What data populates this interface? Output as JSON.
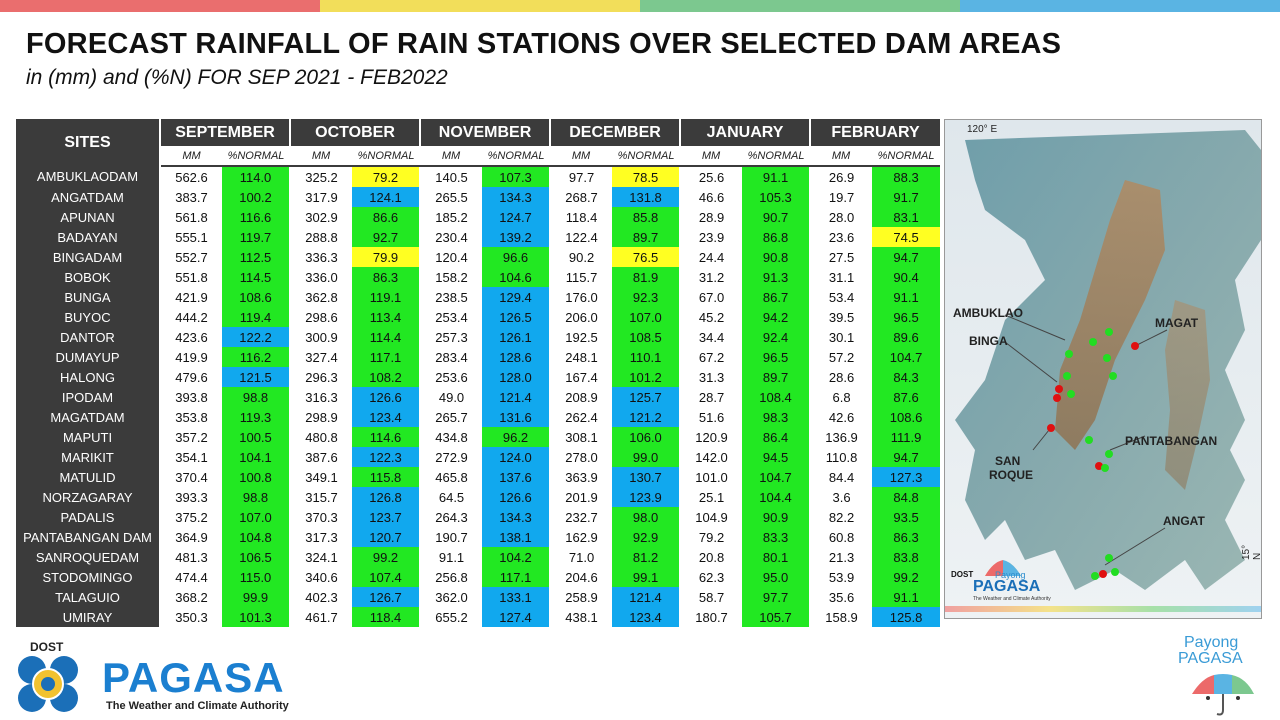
{
  "topbar_colors": [
    "#ea6e6e",
    "#f2de5a",
    "#7cc88f",
    "#5ab4e3"
  ],
  "title": "FORECAST RAINFALL OF RAIN STATIONS OVER SELECTED DAM AREAS",
  "subtitle": "in (mm) and (%N) FOR SEP 2021 - FEB2022",
  "table": {
    "site_header": "SITES",
    "months": [
      "SEPTEMBER",
      "OCTOBER",
      "NOVEMBER",
      "DECEMBER",
      "JANUARY",
      "FEBRUARY"
    ],
    "sub_mm": "MM",
    "sub_pct": "%NORMAL",
    "legend_colors": {
      "below_normal": "#ffff22",
      "near_normal": "#22e822",
      "above_normal": "#11a8ee"
    },
    "rows": [
      {
        "site": "AMBUKLAODAM",
        "vals": [
          [
            "562.6",
            "114.0",
            "g"
          ],
          [
            "325.2",
            "79.2",
            "y"
          ],
          [
            "140.5",
            "107.3",
            "g"
          ],
          [
            "97.7",
            "78.5",
            "y"
          ],
          [
            "25.6",
            "91.1",
            "g"
          ],
          [
            "26.9",
            "88.3",
            "g"
          ]
        ]
      },
      {
        "site": "ANGATDAM",
        "vals": [
          [
            "383.7",
            "100.2",
            "g"
          ],
          [
            "317.9",
            "124.1",
            "b"
          ],
          [
            "265.5",
            "134.3",
            "b"
          ],
          [
            "268.7",
            "131.8",
            "b"
          ],
          [
            "46.6",
            "105.3",
            "g"
          ],
          [
            "19.7",
            "91.7",
            "g"
          ]
        ]
      },
      {
        "site": "APUNAN",
        "vals": [
          [
            "561.8",
            "116.6",
            "g"
          ],
          [
            "302.9",
            "86.6",
            "g"
          ],
          [
            "185.2",
            "124.7",
            "b"
          ],
          [
            "118.4",
            "85.8",
            "g"
          ],
          [
            "28.9",
            "90.7",
            "g"
          ],
          [
            "28.0",
            "83.1",
            "g"
          ]
        ]
      },
      {
        "site": "BADAYAN",
        "vals": [
          [
            "555.1",
            "119.7",
            "g"
          ],
          [
            "288.8",
            "92.7",
            "g"
          ],
          [
            "230.4",
            "139.2",
            "b"
          ],
          [
            "122.4",
            "89.7",
            "g"
          ],
          [
            "23.9",
            "86.8",
            "g"
          ],
          [
            "23.6",
            "74.5",
            "y"
          ]
        ]
      },
      {
        "site": "BINGADAM",
        "vals": [
          [
            "552.7",
            "112.5",
            "g"
          ],
          [
            "336.3",
            "79.9",
            "y"
          ],
          [
            "120.4",
            "96.6",
            "g"
          ],
          [
            "90.2",
            "76.5",
            "y"
          ],
          [
            "24.4",
            "90.8",
            "g"
          ],
          [
            "27.5",
            "94.7",
            "g"
          ]
        ]
      },
      {
        "site": "BOBOK",
        "vals": [
          [
            "551.8",
            "114.5",
            "g"
          ],
          [
            "336.0",
            "86.3",
            "g"
          ],
          [
            "158.2",
            "104.6",
            "g"
          ],
          [
            "115.7",
            "81.9",
            "g"
          ],
          [
            "31.2",
            "91.3",
            "g"
          ],
          [
            "31.1",
            "90.4",
            "g"
          ]
        ]
      },
      {
        "site": "BUNGA",
        "vals": [
          [
            "421.9",
            "108.6",
            "g"
          ],
          [
            "362.8",
            "119.1",
            "g"
          ],
          [
            "238.5",
            "129.4",
            "b"
          ],
          [
            "176.0",
            "92.3",
            "g"
          ],
          [
            "67.0",
            "86.7",
            "g"
          ],
          [
            "53.4",
            "91.1",
            "g"
          ]
        ]
      },
      {
        "site": "BUYOC",
        "vals": [
          [
            "444.2",
            "119.4",
            "g"
          ],
          [
            "298.6",
            "113.4",
            "g"
          ],
          [
            "253.4",
            "126.5",
            "b"
          ],
          [
            "206.0",
            "107.0",
            "g"
          ],
          [
            "45.2",
            "94.2",
            "g"
          ],
          [
            "39.5",
            "96.5",
            "g"
          ]
        ]
      },
      {
        "site": "DANTOR",
        "vals": [
          [
            "423.6",
            "122.2",
            "b"
          ],
          [
            "300.9",
            "114.4",
            "g"
          ],
          [
            "257.3",
            "126.1",
            "b"
          ],
          [
            "192.5",
            "108.5",
            "g"
          ],
          [
            "34.4",
            "92.4",
            "g"
          ],
          [
            "30.1",
            "89.6",
            "g"
          ]
        ]
      },
      {
        "site": "DUMAYUP",
        "vals": [
          [
            "419.9",
            "116.2",
            "g"
          ],
          [
            "327.4",
            "117.1",
            "g"
          ],
          [
            "283.4",
            "128.6",
            "b"
          ],
          [
            "248.1",
            "110.1",
            "g"
          ],
          [
            "67.2",
            "96.5",
            "g"
          ],
          [
            "57.2",
            "104.7",
            "g"
          ]
        ]
      },
      {
        "site": "HALONG",
        "vals": [
          [
            "479.6",
            "121.5",
            "b"
          ],
          [
            "296.3",
            "108.2",
            "g"
          ],
          [
            "253.6",
            "128.0",
            "b"
          ],
          [
            "167.4",
            "101.2",
            "g"
          ],
          [
            "31.3",
            "89.7",
            "g"
          ],
          [
            "28.6",
            "84.3",
            "g"
          ]
        ]
      },
      {
        "site": "IPODAM",
        "vals": [
          [
            "393.8",
            "98.8",
            "g"
          ],
          [
            "316.3",
            "126.6",
            "b"
          ],
          [
            "49.0",
            "121.4",
            "b"
          ],
          [
            "208.9",
            "125.7",
            "b"
          ],
          [
            "28.7",
            "108.4",
            "g"
          ],
          [
            "6.8",
            "87.6",
            "g"
          ]
        ]
      },
      {
        "site": "MAGATDAM",
        "vals": [
          [
            "353.8",
            "119.3",
            "g"
          ],
          [
            "298.9",
            "123.4",
            "b"
          ],
          [
            "265.7",
            "131.6",
            "b"
          ],
          [
            "262.4",
            "121.2",
            "b"
          ],
          [
            "51.6",
            "98.3",
            "g"
          ],
          [
            "42.6",
            "108.6",
            "g"
          ]
        ]
      },
      {
        "site": "MAPUTI",
        "vals": [
          [
            "357.2",
            "100.5",
            "g"
          ],
          [
            "480.8",
            "114.6",
            "g"
          ],
          [
            "434.8",
            "96.2",
            "g"
          ],
          [
            "308.1",
            "106.0",
            "g"
          ],
          [
            "120.9",
            "86.4",
            "g"
          ],
          [
            "136.9",
            "111.9",
            "g"
          ]
        ]
      },
      {
        "site": "MARIKIT",
        "vals": [
          [
            "354.1",
            "104.1",
            "g"
          ],
          [
            "387.6",
            "122.3",
            "b"
          ],
          [
            "272.9",
            "124.0",
            "b"
          ],
          [
            "278.0",
            "99.0",
            "g"
          ],
          [
            "142.0",
            "94.5",
            "g"
          ],
          [
            "110.8",
            "94.7",
            "g"
          ]
        ]
      },
      {
        "site": "MATULID",
        "vals": [
          [
            "370.4",
            "100.8",
            "g"
          ],
          [
            "349.1",
            "115.8",
            "g"
          ],
          [
            "465.8",
            "137.6",
            "b"
          ],
          [
            "363.9",
            "130.7",
            "b"
          ],
          [
            "101.0",
            "104.7",
            "g"
          ],
          [
            "84.4",
            "127.3",
            "b"
          ]
        ]
      },
      {
        "site": "NORZAGARAY",
        "vals": [
          [
            "393.3",
            "98.8",
            "g"
          ],
          [
            "315.7",
            "126.8",
            "b"
          ],
          [
            "64.5",
            "126.6",
            "b"
          ],
          [
            "201.9",
            "123.9",
            "b"
          ],
          [
            "25.1",
            "104.4",
            "g"
          ],
          [
            "3.6",
            "84.8",
            "g"
          ]
        ]
      },
      {
        "site": "PADALIS",
        "vals": [
          [
            "375.2",
            "107.0",
            "g"
          ],
          [
            "370.3",
            "123.7",
            "b"
          ],
          [
            "264.3",
            "134.3",
            "b"
          ],
          [
            "232.7",
            "98.0",
            "g"
          ],
          [
            "104.9",
            "90.9",
            "g"
          ],
          [
            "82.2",
            "93.5",
            "g"
          ]
        ]
      },
      {
        "site": "PANTABANGAN DAM",
        "vals": [
          [
            "364.9",
            "104.8",
            "g"
          ],
          [
            "317.3",
            "120.7",
            "b"
          ],
          [
            "190.7",
            "138.1",
            "b"
          ],
          [
            "162.9",
            "92.9",
            "g"
          ],
          [
            "79.2",
            "83.3",
            "g"
          ],
          [
            "60.8",
            "86.3",
            "g"
          ]
        ]
      },
      {
        "site": "SANROQUEDAM",
        "vals": [
          [
            "481.3",
            "106.5",
            "g"
          ],
          [
            "324.1",
            "99.2",
            "g"
          ],
          [
            "91.1",
            "104.2",
            "g"
          ],
          [
            "71.0",
            "81.2",
            "g"
          ],
          [
            "20.8",
            "80.1",
            "g"
          ],
          [
            "21.3",
            "83.8",
            "g"
          ]
        ]
      },
      {
        "site": "STODOMINGO",
        "vals": [
          [
            "474.4",
            "115.0",
            "g"
          ],
          [
            "340.6",
            "107.4",
            "g"
          ],
          [
            "256.8",
            "117.1",
            "g"
          ],
          [
            "204.6",
            "99.1",
            "g"
          ],
          [
            "62.3",
            "95.0",
            "g"
          ],
          [
            "53.9",
            "99.2",
            "g"
          ]
        ]
      },
      {
        "site": "TALAGUIO",
        "vals": [
          [
            "368.2",
            "99.9",
            "g"
          ],
          [
            "402.3",
            "126.7",
            "b"
          ],
          [
            "362.0",
            "133.1",
            "b"
          ],
          [
            "258.9",
            "121.4",
            "b"
          ],
          [
            "58.7",
            "97.7",
            "g"
          ],
          [
            "35.6",
            "91.1",
            "g"
          ]
        ]
      },
      {
        "site": "UMIRAY",
        "vals": [
          [
            "350.3",
            "101.3",
            "g"
          ],
          [
            "461.7",
            "118.4",
            "g"
          ],
          [
            "655.2",
            "127.4",
            "b"
          ],
          [
            "438.1",
            "123.4",
            "b"
          ],
          [
            "180.7",
            "105.7",
            "g"
          ],
          [
            "158.9",
            "125.8",
            "b"
          ]
        ]
      }
    ]
  },
  "map": {
    "lon_label": "120° E",
    "lat_label": "15° N",
    "labels": {
      "ambuklao": "AMBUKLAO",
      "binga": "BINGA",
      "magat": "MAGAT",
      "pantabangan": "PANTABANGAN",
      "sanroque_1": "SAN",
      "sanroque_2": "ROQUE",
      "angat": "ANGAT"
    },
    "logo_dost": "DOST",
    "logo_payong": "Payong",
    "logo_pagasa": "PAGASA",
    "logo_tag": "The Weather and Climate Authority"
  },
  "footer": {
    "dost": "DOST",
    "pagasa": "PAGASA",
    "tagline": "The Weather and Climate Authority",
    "payong_1": "Payong",
    "payong_2": "PAGASA"
  }
}
